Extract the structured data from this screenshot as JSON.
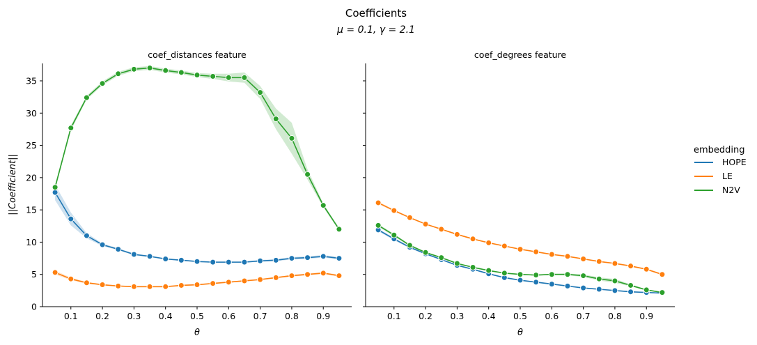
{
  "figure": {
    "title": "Coefficients",
    "subtitle": "μ = 0.1, γ = 2.1"
  },
  "legend": {
    "title": "embedding",
    "items": [
      {
        "label": "HOPE",
        "color": "#1f77b4"
      },
      {
        "label": "LE",
        "color": "#ff7f0e"
      },
      {
        "label": "N2V",
        "color": "#2ca02c"
      }
    ]
  },
  "chart_data": [
    {
      "type": "line",
      "title": "coef_distances feature",
      "xlabel": "θ",
      "ylabel": "||Coefficient||",
      "xlim": [
        0.01,
        0.99
      ],
      "ylim": [
        0,
        37.7
      ],
      "xticks": [
        "0.1",
        "0.2",
        "0.3",
        "0.4",
        "0.5",
        "0.6",
        "0.7",
        "0.8",
        "0.9"
      ],
      "yticks": [
        "0",
        "5",
        "10",
        "15",
        "20",
        "25",
        "30",
        "35"
      ],
      "x": [
        0.05,
        0.1,
        0.15,
        0.2,
        0.25,
        0.3,
        0.35,
        0.4,
        0.45,
        0.5,
        0.55,
        0.6,
        0.65,
        0.7,
        0.75,
        0.8,
        0.85,
        0.9,
        0.95
      ],
      "series": [
        {
          "name": "HOPE",
          "values": [
            17.7,
            13.6,
            11.0,
            9.6,
            8.9,
            8.1,
            7.8,
            7.4,
            7.2,
            7.0,
            6.9,
            6.9,
            6.9,
            7.1,
            7.2,
            7.5,
            7.6,
            7.8,
            7.5
          ],
          "band": [
            1.2,
            1.0,
            0.4,
            0.2,
            0.15,
            0.15,
            0.1,
            0.1,
            0.1,
            0.1,
            0.1,
            0.1,
            0.1,
            0.15,
            0.15,
            0.2,
            0.2,
            0.2,
            0.2
          ]
        },
        {
          "name": "LE",
          "values": [
            5.3,
            4.3,
            3.7,
            3.4,
            3.2,
            3.1,
            3.1,
            3.1,
            3.3,
            3.4,
            3.6,
            3.8,
            4.0,
            4.2,
            4.5,
            4.8,
            5.0,
            5.2,
            4.8
          ],
          "band": [
            0.3,
            0.2,
            0.15,
            0.1,
            0.1,
            0.1,
            0.1,
            0.1,
            0.1,
            0.1,
            0.1,
            0.1,
            0.1,
            0.1,
            0.1,
            0.15,
            0.15,
            0.15,
            0.15
          ]
        },
        {
          "name": "N2V",
          "values": [
            18.5,
            27.7,
            32.4,
            34.6,
            36.1,
            36.8,
            37.0,
            36.6,
            36.3,
            35.9,
            35.7,
            35.5,
            35.5,
            33.2,
            29.1,
            26.1,
            20.5,
            15.7,
            12.0
          ],
          "band": [
            0.4,
            0.4,
            0.3,
            0.3,
            0.3,
            0.3,
            0.3,
            0.3,
            0.3,
            0.3,
            0.4,
            0.6,
            0.8,
            1.0,
            1.6,
            2.4,
            0.8,
            0.3,
            0.2
          ]
        }
      ]
    },
    {
      "type": "line",
      "title": "coef_degrees feature",
      "xlabel": "θ",
      "ylabel": "",
      "xlim": [
        0.01,
        0.99
      ],
      "ylim": [
        0,
        37.7
      ],
      "xticks": [
        "0.1",
        "0.2",
        "0.3",
        "0.4",
        "0.5",
        "0.6",
        "0.7",
        "0.8",
        "0.9"
      ],
      "yticks": [],
      "x": [
        0.05,
        0.1,
        0.15,
        0.2,
        0.25,
        0.3,
        0.35,
        0.4,
        0.45,
        0.5,
        0.55,
        0.6,
        0.65,
        0.7,
        0.75,
        0.8,
        0.85,
        0.9,
        0.95
      ],
      "series": [
        {
          "name": "HOPE",
          "values": [
            11.9,
            10.5,
            9.2,
            8.2,
            7.3,
            6.4,
            5.8,
            5.1,
            4.5,
            4.1,
            3.8,
            3.5,
            3.2,
            2.9,
            2.7,
            2.5,
            2.3,
            2.2,
            2.1
          ],
          "band": [
            0.2,
            0.2,
            0.15,
            0.1,
            0.1,
            0.1,
            0.1,
            0.1,
            0.1,
            0.1,
            0.1,
            0.1,
            0.1,
            0.1,
            0.1,
            0.1,
            0.1,
            0.1,
            0.1
          ]
        },
        {
          "name": "LE",
          "values": [
            16.1,
            14.9,
            13.8,
            12.8,
            12.0,
            11.2,
            10.5,
            9.9,
            9.4,
            8.9,
            8.5,
            8.1,
            7.8,
            7.4,
            7.0,
            6.7,
            6.3,
            5.8,
            5.0
          ],
          "band": [
            0.2,
            0.15,
            0.1,
            0.1,
            0.1,
            0.1,
            0.1,
            0.1,
            0.1,
            0.1,
            0.1,
            0.1,
            0.1,
            0.1,
            0.1,
            0.1,
            0.1,
            0.1,
            0.15
          ]
        },
        {
          "name": "N2V",
          "values": [
            12.6,
            11.1,
            9.5,
            8.4,
            7.6,
            6.7,
            6.1,
            5.6,
            5.2,
            5.0,
            4.9,
            5.0,
            5.0,
            4.8,
            4.3,
            4.0,
            3.3,
            2.6,
            2.2
          ],
          "band": [
            0.2,
            0.2,
            0.15,
            0.1,
            0.1,
            0.1,
            0.1,
            0.1,
            0.1,
            0.1,
            0.1,
            0.1,
            0.15,
            0.2,
            0.25,
            0.3,
            0.15,
            0.1,
            0.1
          ]
        }
      ]
    }
  ]
}
